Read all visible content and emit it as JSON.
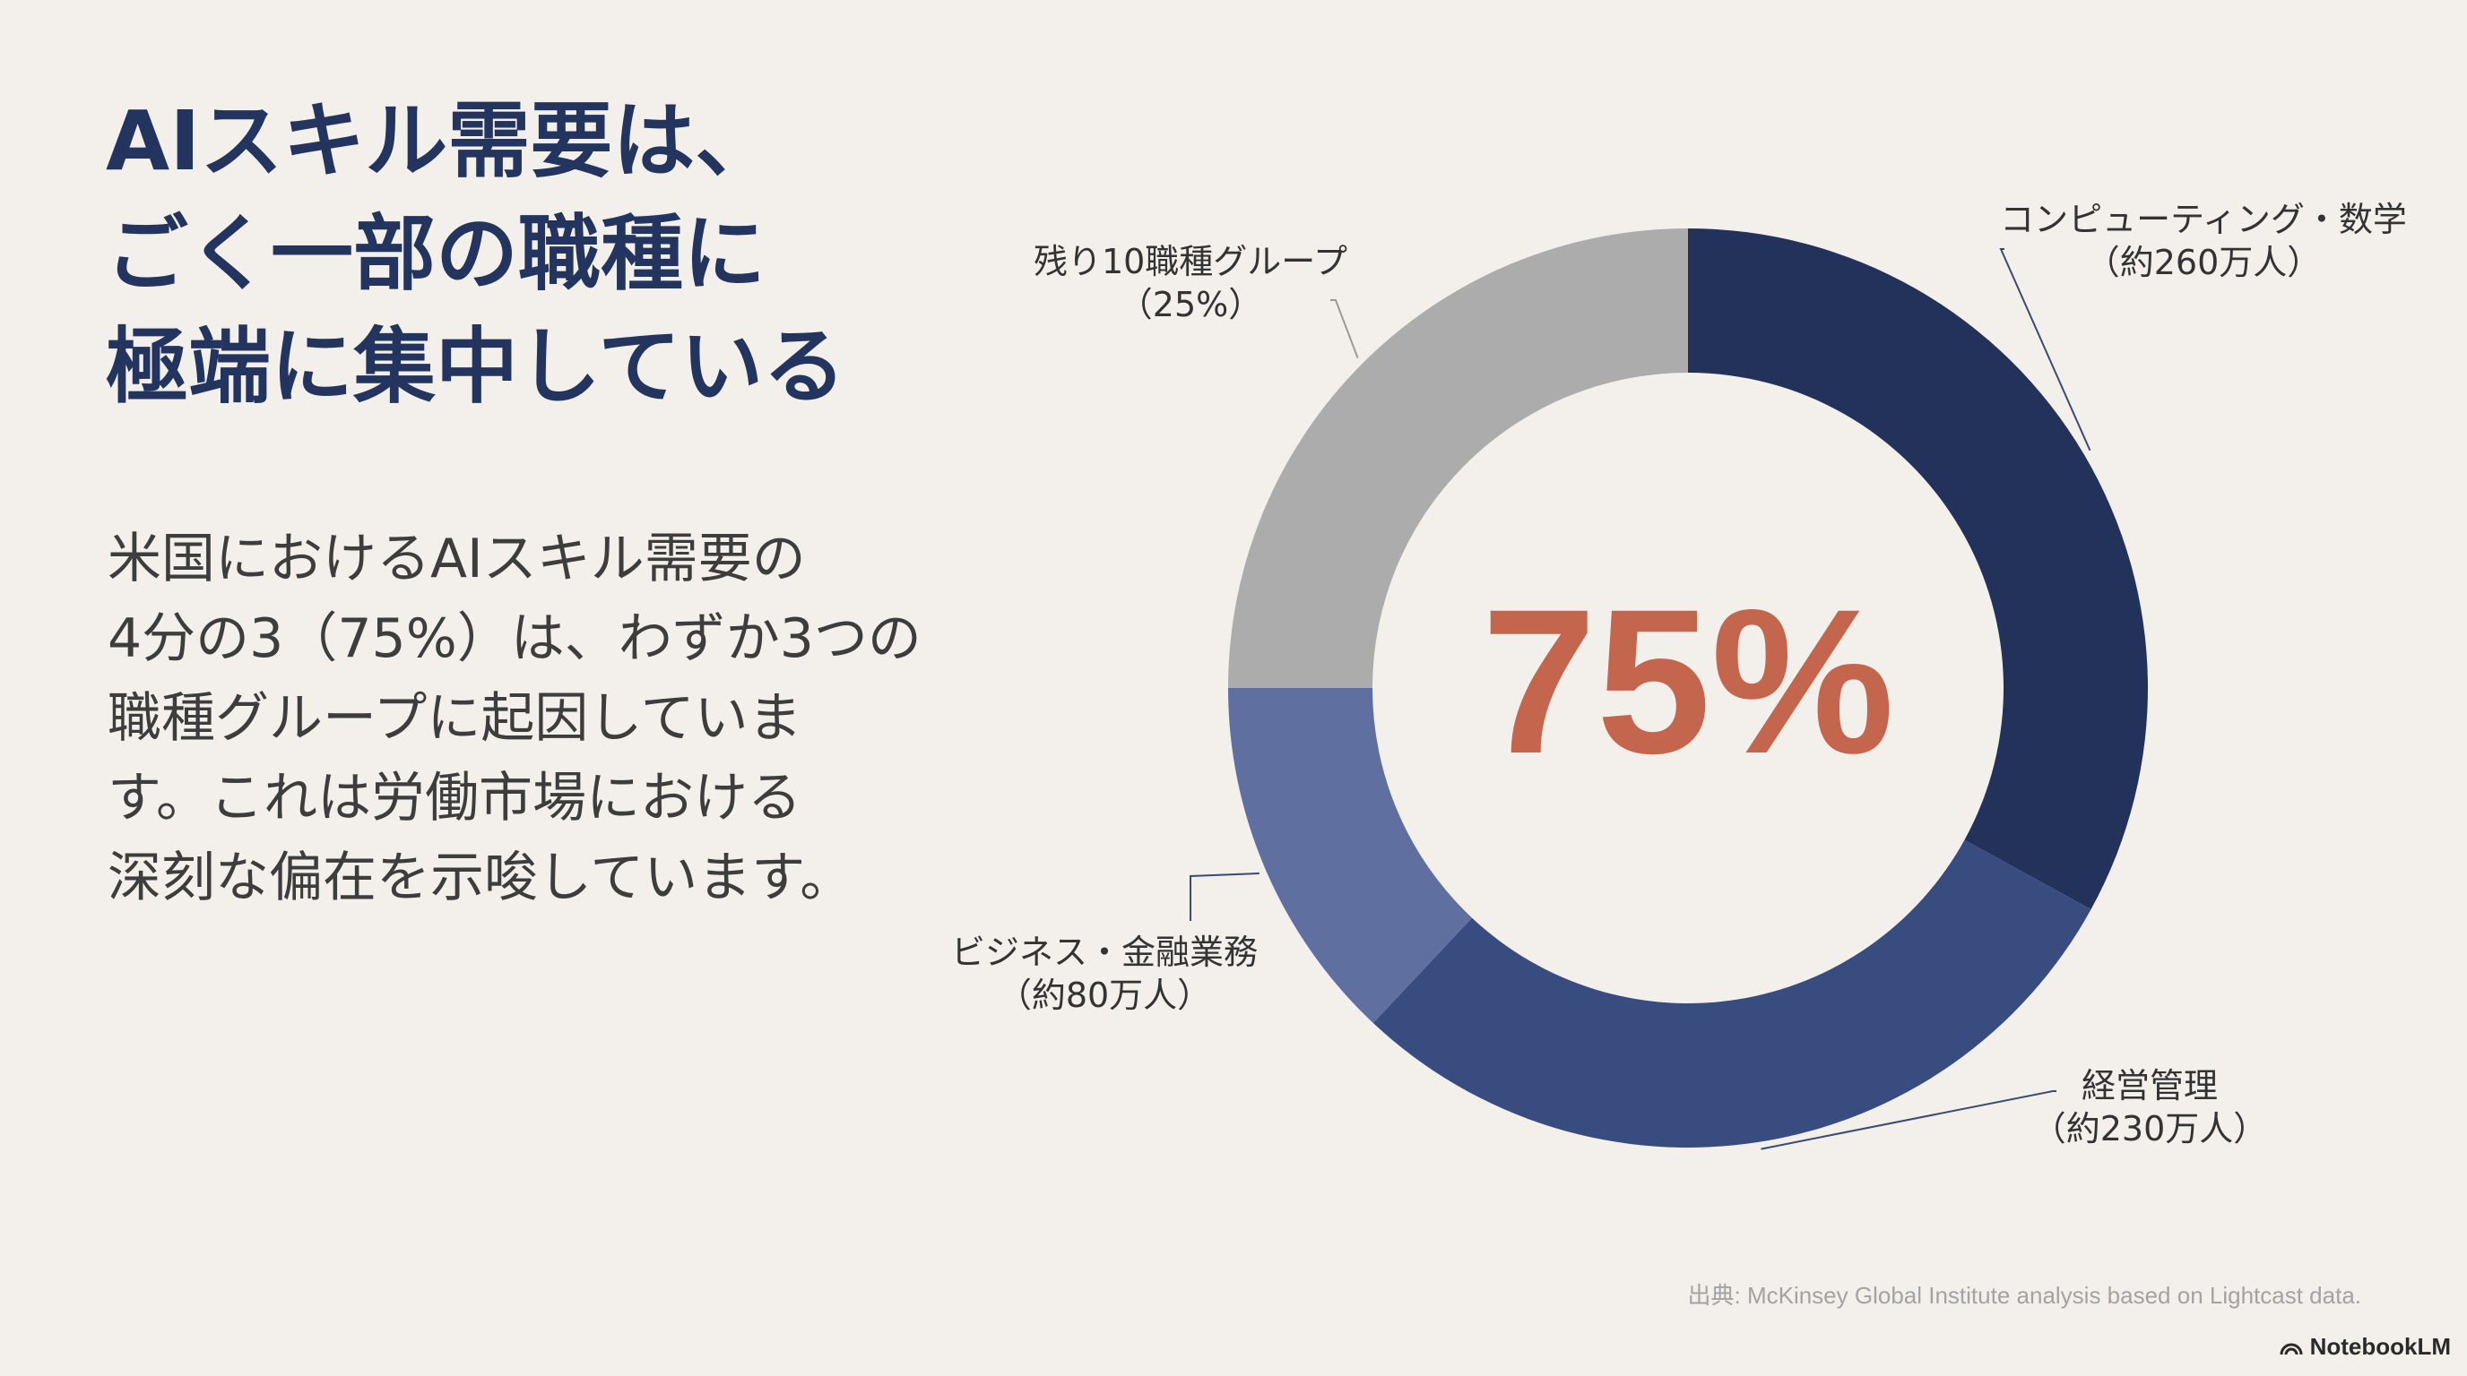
{
  "slide": {
    "title_lines": [
      "AIスキル需要は、",
      "ごく一部の職種に",
      "極端に集中している"
    ],
    "body_lines": [
      "米国におけるAIスキル需要の",
      "4分の3（75%）は、わずか3つの",
      "職種グループに起因していま",
      "す。これは労働市場における",
      "深刻な偏在を示唆しています。"
    ],
    "source": "出典: McKinsey Global Institute analysis based on Lightcast data.",
    "brand": "NotebookLM"
  },
  "chart_data": {
    "type": "pie",
    "variant": "donut",
    "center_label": "75%",
    "center_color": "#c4654d",
    "unit": "%",
    "slices": [
      {
        "label": "コンピューティング・数学",
        "sublabel": "（約260万人）",
        "value": 33,
        "color": "#23325a"
      },
      {
        "label": "経営管理",
        "sublabel": "（約230万人）",
        "value": 29,
        "color": "#394c80"
      },
      {
        "label": "ビジネス・金融業務",
        "sublabel": "（約80万人）",
        "value": 13,
        "color": "#5f70a0"
      },
      {
        "label": "残り10職種グループ",
        "sublabel": "（25%）",
        "value": 25,
        "color": "#acacac"
      }
    ]
  }
}
